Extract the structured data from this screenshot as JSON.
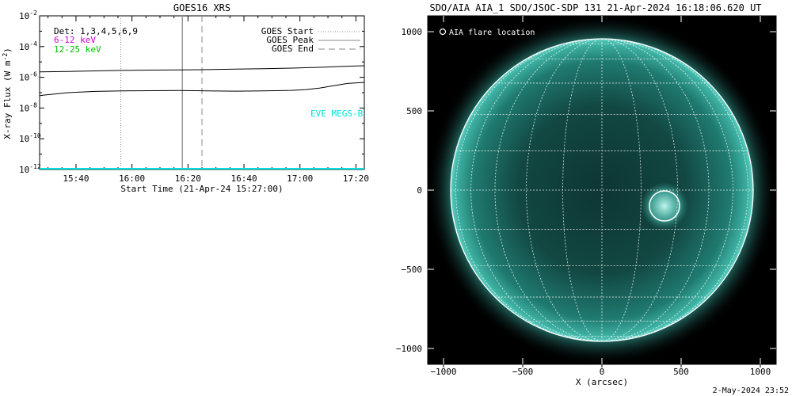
{
  "chart_data": [
    {
      "type": "line",
      "title": "GOES16 XRS",
      "xlabel": "Start Time (21-Apr-24 15:27:00)",
      "ylabel_main": "X-ray Flux (W m",
      "ylabel_sup": "-2",
      "ylabel_close": ")",
      "yscale": "log",
      "ylim_exp": [
        -12,
        -2
      ],
      "xlim_min": [
        0,
        116
      ],
      "x_ticks": [
        {
          "min": 13,
          "label": "15:40"
        },
        {
          "min": 33,
          "label": "16:00"
        },
        {
          "min": 53,
          "label": "16:20"
        },
        {
          "min": 73,
          "label": "16:40"
        },
        {
          "min": 93,
          "label": "17:00"
        },
        {
          "min": 113,
          "label": "17:20"
        }
      ],
      "y_ticks": [
        {
          "exp": -2,
          "base": "10",
          "sup": "-2"
        },
        {
          "exp": -4,
          "base": "10",
          "sup": "-4"
        },
        {
          "exp": -6,
          "base": "10",
          "sup": "-6"
        },
        {
          "exp": -8,
          "base": "10",
          "sup": "-8"
        },
        {
          "exp": -10,
          "base": "10",
          "sup": "-10"
        },
        {
          "exp": -12,
          "base": "10",
          "sup": "-12"
        }
      ],
      "detectors_label": "Det: 1,3,4,5,6,9",
      "energy_bands": [
        {
          "label": "6-12 keV",
          "color": "#d000d0"
        },
        {
          "label": "12-25 keV",
          "color": "#00c000"
        }
      ],
      "legend": [
        {
          "label": "GOES Start",
          "style": "dotted"
        },
        {
          "label": "GOES Peak",
          "style": "solid"
        },
        {
          "label": "GOES End",
          "style": "dashed"
        }
      ],
      "markers": {
        "start_min": 29,
        "peak_min": 51,
        "end_min": 58
      },
      "eve_label": "EVE MEGS-B",
      "series": [
        {
          "name": "long",
          "color": "#000000",
          "x": [
            0,
            10,
            20,
            30,
            40,
            50,
            60,
            70,
            80,
            90,
            100,
            110,
            116
          ],
          "y_exp": [
            -5.65,
            -5.62,
            -5.58,
            -5.55,
            -5.53,
            -5.52,
            -5.5,
            -5.47,
            -5.44,
            -5.4,
            -5.35,
            -5.28,
            -5.25
          ]
        },
        {
          "name": "short",
          "color": "#000000",
          "x": [
            0,
            2,
            5,
            10,
            20,
            30,
            40,
            50,
            60,
            70,
            80,
            90,
            95,
            100,
            105,
            110,
            116
          ],
          "y_exp": [
            -7.2,
            -7.15,
            -7.1,
            -7.0,
            -6.92,
            -6.88,
            -6.87,
            -6.86,
            -6.88,
            -6.9,
            -6.88,
            -6.85,
            -6.8,
            -6.7,
            -6.55,
            -6.4,
            -6.33
          ]
        },
        {
          "name": "EVE MEGS-B",
          "color": "#00e0e0",
          "x": [
            0,
            116
          ],
          "y_exp": [
            -11.95,
            -11.95
          ]
        }
      ]
    },
    {
      "type": "image",
      "title": "SDO/AIA AIA_1 SDO/JSOC-SDP 131 21-Apr-2024 16:18:06.620 UT",
      "xlabel": "X (arcsec)",
      "xlim": [
        -1100,
        1100
      ],
      "ylim": [
        -1100,
        1100
      ],
      "x_ticks": [
        -1000,
        -500,
        0,
        500,
        1000
      ],
      "y_ticks": [
        1000,
        500,
        0,
        -500,
        -1000
      ],
      "solar_radius_arcsec": 955,
      "flare_location_label": "AIA flare location",
      "flare_location": {
        "x": 395,
        "y": -100
      }
    }
  ],
  "footer_date": "2-May-2024 23:52"
}
